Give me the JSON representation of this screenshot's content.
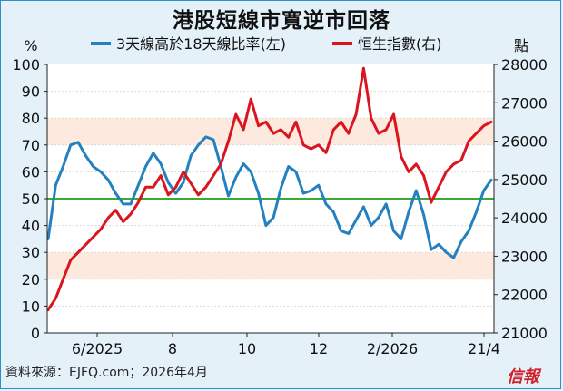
{
  "title": "港股短線市寬逆市回落",
  "source": "資料來源：EJFQ.com；2026年4月",
  "brand": "信報",
  "left_unit": "%",
  "right_unit": "點",
  "colors": {
    "breadth": "#2480bf",
    "hsi": "#d9151f",
    "band": "#fde9dd",
    "midline": "#3aaa35",
    "grid": "#d9d9d9"
  },
  "chart_data": {
    "type": "line",
    "title": "港股短線市寬逆市回落",
    "x_labels": [
      "6/2025",
      "8",
      "10",
      "12",
      "2/2026",
      "21/4"
    ],
    "left_axis": {
      "unit": "%",
      "min": 0,
      "max": 100,
      "ticks": [
        0,
        10,
        20,
        30,
        40,
        50,
        60,
        70,
        80,
        90,
        100
      ]
    },
    "right_axis": {
      "unit": "點",
      "min": 21000,
      "max": 28000,
      "ticks": [
        21000,
        22000,
        23000,
        24000,
        25000,
        26000,
        27000,
        28000
      ]
    },
    "bands": [
      {
        "axis": "left",
        "from": 70,
        "to": 80
      },
      {
        "axis": "left",
        "from": 20,
        "to": 30
      }
    ],
    "reference_line": {
      "axis": "left",
      "value": 50
    },
    "series": [
      {
        "name": "3天線高於18天線比率(左)",
        "axis": "left",
        "values": [
          35,
          55,
          62,
          70,
          71,
          66,
          62,
          60,
          57,
          52,
          48,
          48,
          55,
          62,
          67,
          63,
          56,
          52,
          56,
          66,
          70,
          73,
          72,
          62,
          51,
          58,
          63,
          60,
          52,
          40,
          43,
          54,
          62,
          60,
          52,
          53,
          55,
          48,
          45,
          38,
          37,
          42,
          47,
          40,
          43,
          48,
          38,
          35,
          45,
          53,
          44,
          31,
          33,
          30,
          28,
          34,
          38,
          45,
          53,
          57
        ]
      },
      {
        "name": "恒生指數(右)",
        "axis": "right",
        "values": [
          21600,
          21900,
          22400,
          22900,
          23100,
          23300,
          23500,
          23700,
          24000,
          24200,
          23900,
          24100,
          24400,
          24800,
          24800,
          25100,
          24600,
          24800,
          25200,
          24900,
          24600,
          24800,
          25100,
          25400,
          26000,
          26700,
          26300,
          27100,
          26400,
          26500,
          26200,
          26300,
          26100,
          26500,
          25900,
          25800,
          25900,
          25700,
          26300,
          26500,
          26200,
          26700,
          27900,
          26600,
          26200,
          26300,
          26700,
          25600,
          25200,
          25400,
          25100,
          24400,
          24800,
          25200,
          25400,
          25500,
          26000,
          26200,
          26400,
          26500
        ]
      }
    ]
  }
}
